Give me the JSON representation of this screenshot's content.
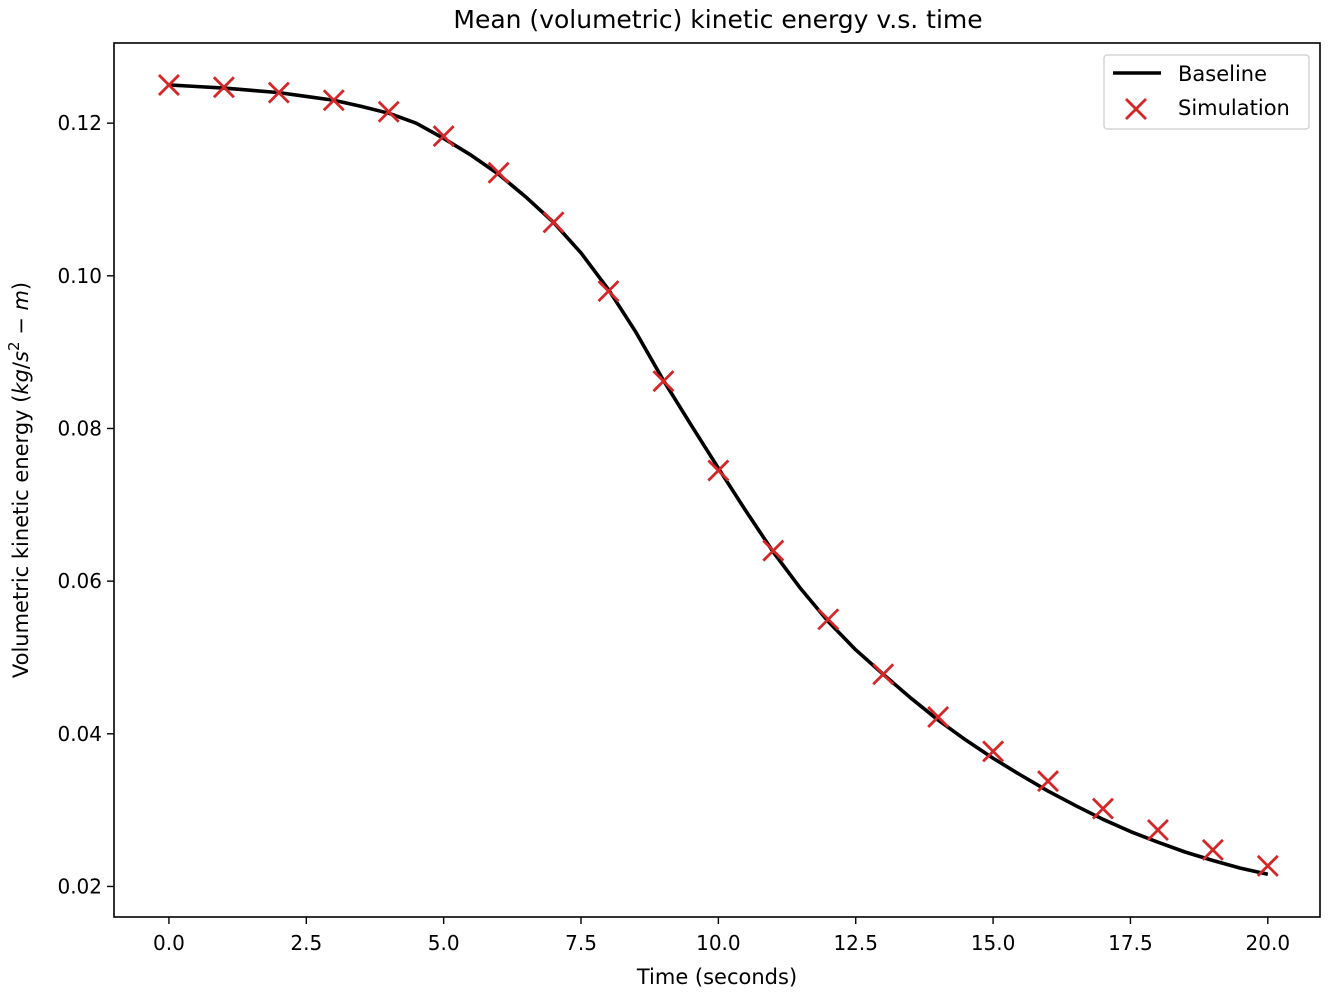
{
  "chart_data": {
    "type": "line",
    "title": "Mean (volumetric) kinetic energy v.s. time",
    "xlabel": "Time (seconds)",
    "ylabel_prefix": "Volumetric kinetic energy (",
    "ylabel_kg": "kg",
    "ylabel_slash": "/",
    "ylabel_s": "s",
    "ylabel_exp": "2",
    "ylabel_minus": " − ",
    "ylabel_m": "m",
    "ylabel_suffix": ")",
    "xlim": [
      -1.0,
      20.95
    ],
    "ylim": [
      0.016,
      0.1305
    ],
    "xticks": [
      0.0,
      2.5,
      5.0,
      7.5,
      10.0,
      12.5,
      15.0,
      17.5,
      20.0
    ],
    "xtick_labels": [
      "0.0",
      "2.5",
      "5.0",
      "7.5",
      "10.0",
      "12.5",
      "15.0",
      "17.5",
      "20.0"
    ],
    "yticks": [
      0.02,
      0.04,
      0.06,
      0.08,
      0.1,
      0.12
    ],
    "ytick_labels": [
      "0.02",
      "0.04",
      "0.06",
      "0.08",
      "0.10",
      "0.12"
    ],
    "grid": false,
    "legend_position": "top-right",
    "series": [
      {
        "name": "Baseline",
        "style": "line",
        "color": "#000000",
        "x": [
          0,
          0.5,
          1,
          1.5,
          2,
          2.5,
          3,
          3.5,
          4,
          4.5,
          5,
          5.5,
          6,
          6.5,
          7,
          7.5,
          8,
          8.5,
          9,
          9.5,
          10,
          10.5,
          11,
          11.5,
          12,
          12.5,
          13,
          13.5,
          14,
          14.5,
          15,
          15.5,
          16,
          16.5,
          17,
          17.5,
          18,
          18.5,
          19,
          19.5,
          20
        ],
        "y": [
          0.125,
          0.1248,
          0.1246,
          0.1243,
          0.124,
          0.1235,
          0.123,
          0.1222,
          0.1213,
          0.12,
          0.118,
          0.1158,
          0.1133,
          0.1103,
          0.107,
          0.103,
          0.0982,
          0.0926,
          0.0863,
          0.0805,
          0.0748,
          0.0692,
          0.0638,
          0.059,
          0.0547,
          0.051,
          0.0478,
          0.0447,
          0.0418,
          0.0392,
          0.0368,
          0.0346,
          0.0325,
          0.0306,
          0.0288,
          0.0272,
          0.0258,
          0.0245,
          0.0234,
          0.0224,
          0.0216
        ]
      },
      {
        "name": "Simulation",
        "style": "marker-x",
        "color": "#d62728",
        "x": [
          0,
          1,
          2,
          3,
          4,
          5,
          6,
          7,
          8,
          9,
          10,
          11,
          12,
          13,
          14,
          15,
          16,
          17,
          18,
          19,
          20
        ],
        "y": [
          0.125,
          0.1247,
          0.124,
          0.123,
          0.1215,
          0.1183,
          0.1135,
          0.107,
          0.098,
          0.0862,
          0.0745,
          0.064,
          0.055,
          0.0478,
          0.0422,
          0.0377,
          0.0338,
          0.0302,
          0.0274,
          0.0248,
          0.0227
        ]
      }
    ]
  }
}
